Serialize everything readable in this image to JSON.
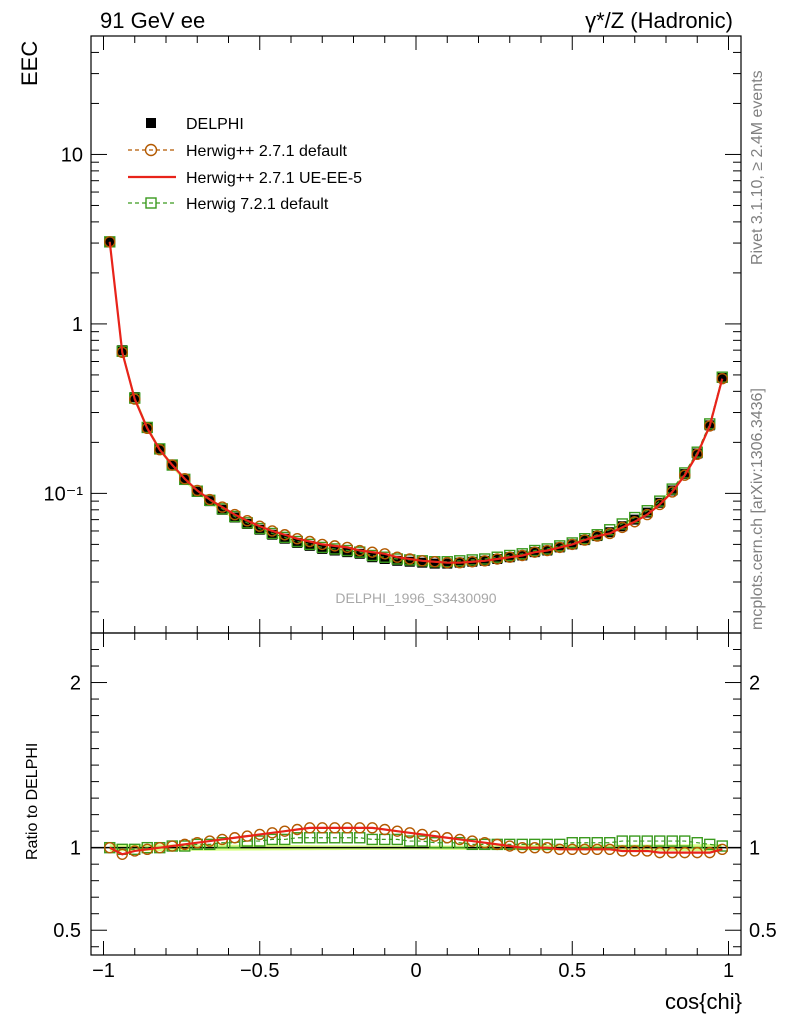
{
  "header": {
    "left": "91 GeV ee",
    "right": "γ*/Z (Hadronic)"
  },
  "side_text": {
    "rivet": "Rivet 3.1.10, ≥ 2.4M events",
    "mcplots": "mcplots.cern.ch [arXiv:1306.3436]"
  },
  "analysis_label": "DELPHI_1996_S3430090",
  "legend": {
    "delphi": "DELPHI",
    "herwigpp_default": "Herwig++ 2.7.1 default",
    "herwigpp_ueee5": "Herwig++ 2.7.1 UE-EE-5",
    "herwig7": "Herwig 7.2.1 default"
  },
  "colors": {
    "delphi": "#000000",
    "herwigpp_default": "#b35900",
    "herwigpp_ueee5": "#e8231a",
    "herwig7": "#3a9a1e",
    "band": "#ccff66"
  },
  "chart_data": [
    {
      "type": "line",
      "panel": "main",
      "ylabel": "EEC",
      "yscale": "log",
      "ylim": [
        0.015,
        50
      ],
      "xlim": [
        -1.04,
        1.04
      ],
      "y_ticklabels": [
        "10⁻¹",
        "1",
        "10"
      ],
      "x": [
        -0.98,
        -0.94,
        -0.9,
        -0.86,
        -0.82,
        -0.78,
        -0.74,
        -0.7,
        -0.66,
        -0.62,
        -0.58,
        -0.54,
        -0.5,
        -0.46,
        -0.42,
        -0.38,
        -0.34,
        -0.3,
        -0.26,
        -0.22,
        -0.18,
        -0.14,
        -0.1,
        -0.06,
        -0.02,
        0.02,
        0.06,
        0.1,
        0.14,
        0.18,
        0.22,
        0.26,
        0.3,
        0.34,
        0.38,
        0.42,
        0.46,
        0.5,
        0.54,
        0.58,
        0.62,
        0.66,
        0.7,
        0.74,
        0.78,
        0.82,
        0.86,
        0.9,
        0.94,
        0.98
      ],
      "series": [
        {
          "name": "DELPHI",
          "key": "delphi",
          "values": [
            3.05,
            0.7,
            0.37,
            0.245,
            0.182,
            0.146,
            0.12,
            0.102,
            0.09,
            0.08,
            0.072,
            0.066,
            0.061,
            0.057,
            0.054,
            0.051,
            0.049,
            0.047,
            0.046,
            0.045,
            0.044,
            0.042,
            0.041,
            0.04,
            0.0395,
            0.039,
            0.0385,
            0.0385,
            0.039,
            0.0395,
            0.04,
            0.041,
            0.042,
            0.043,
            0.045,
            0.046,
            0.048,
            0.05,
            0.053,
            0.056,
            0.059,
            0.064,
            0.07,
            0.077,
            0.088,
            0.104,
            0.13,
            0.172,
            0.252,
            0.48
          ]
        },
        {
          "name": "Herwig++ 2.7.1 default",
          "key": "herwigpp_default",
          "values": [
            3.05,
            0.68,
            0.36,
            0.242,
            0.181,
            0.147,
            0.122,
            0.104,
            0.092,
            0.083,
            0.075,
            0.069,
            0.064,
            0.06,
            0.057,
            0.054,
            0.052,
            0.05,
            0.049,
            0.048,
            0.046,
            0.045,
            0.044,
            0.042,
            0.041,
            0.04,
            0.0395,
            0.039,
            0.039,
            0.0395,
            0.04,
            0.041,
            0.042,
            0.043,
            0.045,
            0.046,
            0.048,
            0.05,
            0.053,
            0.056,
            0.058,
            0.063,
            0.068,
            0.075,
            0.086,
            0.102,
            0.128,
            0.17,
            0.25,
            0.475
          ]
        },
        {
          "name": "Herwig++ 2.7.1 UE-EE-5",
          "key": "herwigpp_ueee5",
          "values": [
            3.05,
            0.68,
            0.36,
            0.242,
            0.181,
            0.147,
            0.122,
            0.104,
            0.092,
            0.083,
            0.075,
            0.069,
            0.064,
            0.06,
            0.057,
            0.054,
            0.052,
            0.05,
            0.049,
            0.048,
            0.046,
            0.045,
            0.044,
            0.042,
            0.041,
            0.04,
            0.0395,
            0.039,
            0.039,
            0.0395,
            0.04,
            0.041,
            0.042,
            0.043,
            0.045,
            0.046,
            0.048,
            0.05,
            0.053,
            0.056,
            0.058,
            0.063,
            0.068,
            0.075,
            0.086,
            0.102,
            0.128,
            0.17,
            0.25,
            0.475
          ]
        },
        {
          "name": "Herwig 7.2.1 default",
          "key": "herwig7",
          "values": [
            3.05,
            0.69,
            0.365,
            0.245,
            0.183,
            0.147,
            0.121,
            0.103,
            0.091,
            0.081,
            0.073,
            0.067,
            0.062,
            0.058,
            0.055,
            0.052,
            0.05,
            0.048,
            0.047,
            0.046,
            0.045,
            0.043,
            0.042,
            0.041,
            0.0405,
            0.04,
            0.0395,
            0.0395,
            0.04,
            0.0405,
            0.041,
            0.042,
            0.043,
            0.044,
            0.046,
            0.047,
            0.049,
            0.051,
            0.054,
            0.057,
            0.061,
            0.066,
            0.072,
            0.079,
            0.09,
            0.106,
            0.132,
            0.175,
            0.257,
            0.485
          ]
        }
      ]
    },
    {
      "type": "line",
      "panel": "ratio",
      "ylabel": "Ratio to DELPHI",
      "xlabel": "cos{chi}",
      "ylim": [
        0.35,
        2.3
      ],
      "xlim": [
        -1.04,
        1.04
      ],
      "y_ticklabels": [
        "0.5",
        "1",
        "2"
      ],
      "x_ticklabels": [
        "−1",
        "−0.5",
        "0",
        "0.5",
        "1"
      ],
      "x": [
        -0.98,
        -0.94,
        -0.9,
        -0.86,
        -0.82,
        -0.78,
        -0.74,
        -0.7,
        -0.66,
        -0.62,
        -0.58,
        -0.54,
        -0.5,
        -0.46,
        -0.42,
        -0.38,
        -0.34,
        -0.3,
        -0.26,
        -0.22,
        -0.18,
        -0.14,
        -0.1,
        -0.06,
        -0.02,
        0.02,
        0.06,
        0.1,
        0.14,
        0.18,
        0.22,
        0.26,
        0.3,
        0.34,
        0.38,
        0.42,
        0.46,
        0.5,
        0.54,
        0.58,
        0.62,
        0.66,
        0.7,
        0.74,
        0.78,
        0.82,
        0.86,
        0.9,
        0.94,
        0.98
      ],
      "series": [
        {
          "name": "Herwig++ 2.7.1 default",
          "key": "herwigpp_default",
          "values": [
            1.0,
            0.96,
            0.98,
            0.99,
            1.0,
            1.01,
            1.02,
            1.03,
            1.04,
            1.05,
            1.06,
            1.07,
            1.08,
            1.09,
            1.1,
            1.11,
            1.12,
            1.12,
            1.12,
            1.12,
            1.12,
            1.12,
            1.11,
            1.1,
            1.09,
            1.08,
            1.07,
            1.06,
            1.05,
            1.04,
            1.03,
            1.02,
            1.01,
            1.0,
            1.0,
            1.0,
            0.99,
            0.99,
            0.99,
            0.99,
            0.99,
            0.98,
            0.98,
            0.98,
            0.97,
            0.97,
            0.97,
            0.97,
            0.97,
            0.99
          ]
        },
        {
          "name": "Herwig++ 2.7.1 UE-EE-5",
          "key": "herwigpp_ueee5",
          "values": [
            1.0,
            0.96,
            0.98,
            0.99,
            1.0,
            1.01,
            1.02,
            1.03,
            1.04,
            1.05,
            1.06,
            1.07,
            1.08,
            1.09,
            1.1,
            1.11,
            1.12,
            1.12,
            1.12,
            1.12,
            1.12,
            1.12,
            1.11,
            1.1,
            1.09,
            1.08,
            1.07,
            1.06,
            1.05,
            1.04,
            1.03,
            1.02,
            1.01,
            1.0,
            1.0,
            1.0,
            0.99,
            0.99,
            0.99,
            0.99,
            0.99,
            0.98,
            0.98,
            0.98,
            0.97,
            0.97,
            0.97,
            0.97,
            0.97,
            0.99
          ]
        },
        {
          "name": "Herwig 7.2.1 default",
          "key": "herwig7",
          "values": [
            1.0,
            0.99,
            0.99,
            1.0,
            1.0,
            1.01,
            1.01,
            1.02,
            1.02,
            1.03,
            1.03,
            1.04,
            1.04,
            1.05,
            1.05,
            1.06,
            1.06,
            1.06,
            1.06,
            1.06,
            1.06,
            1.05,
            1.05,
            1.05,
            1.04,
            1.04,
            1.03,
            1.03,
            1.03,
            1.02,
            1.02,
            1.02,
            1.02,
            1.02,
            1.02,
            1.02,
            1.02,
            1.03,
            1.03,
            1.03,
            1.03,
            1.04,
            1.04,
            1.04,
            1.04,
            1.04,
            1.04,
            1.03,
            1.02,
            1.01
          ]
        }
      ]
    }
  ]
}
